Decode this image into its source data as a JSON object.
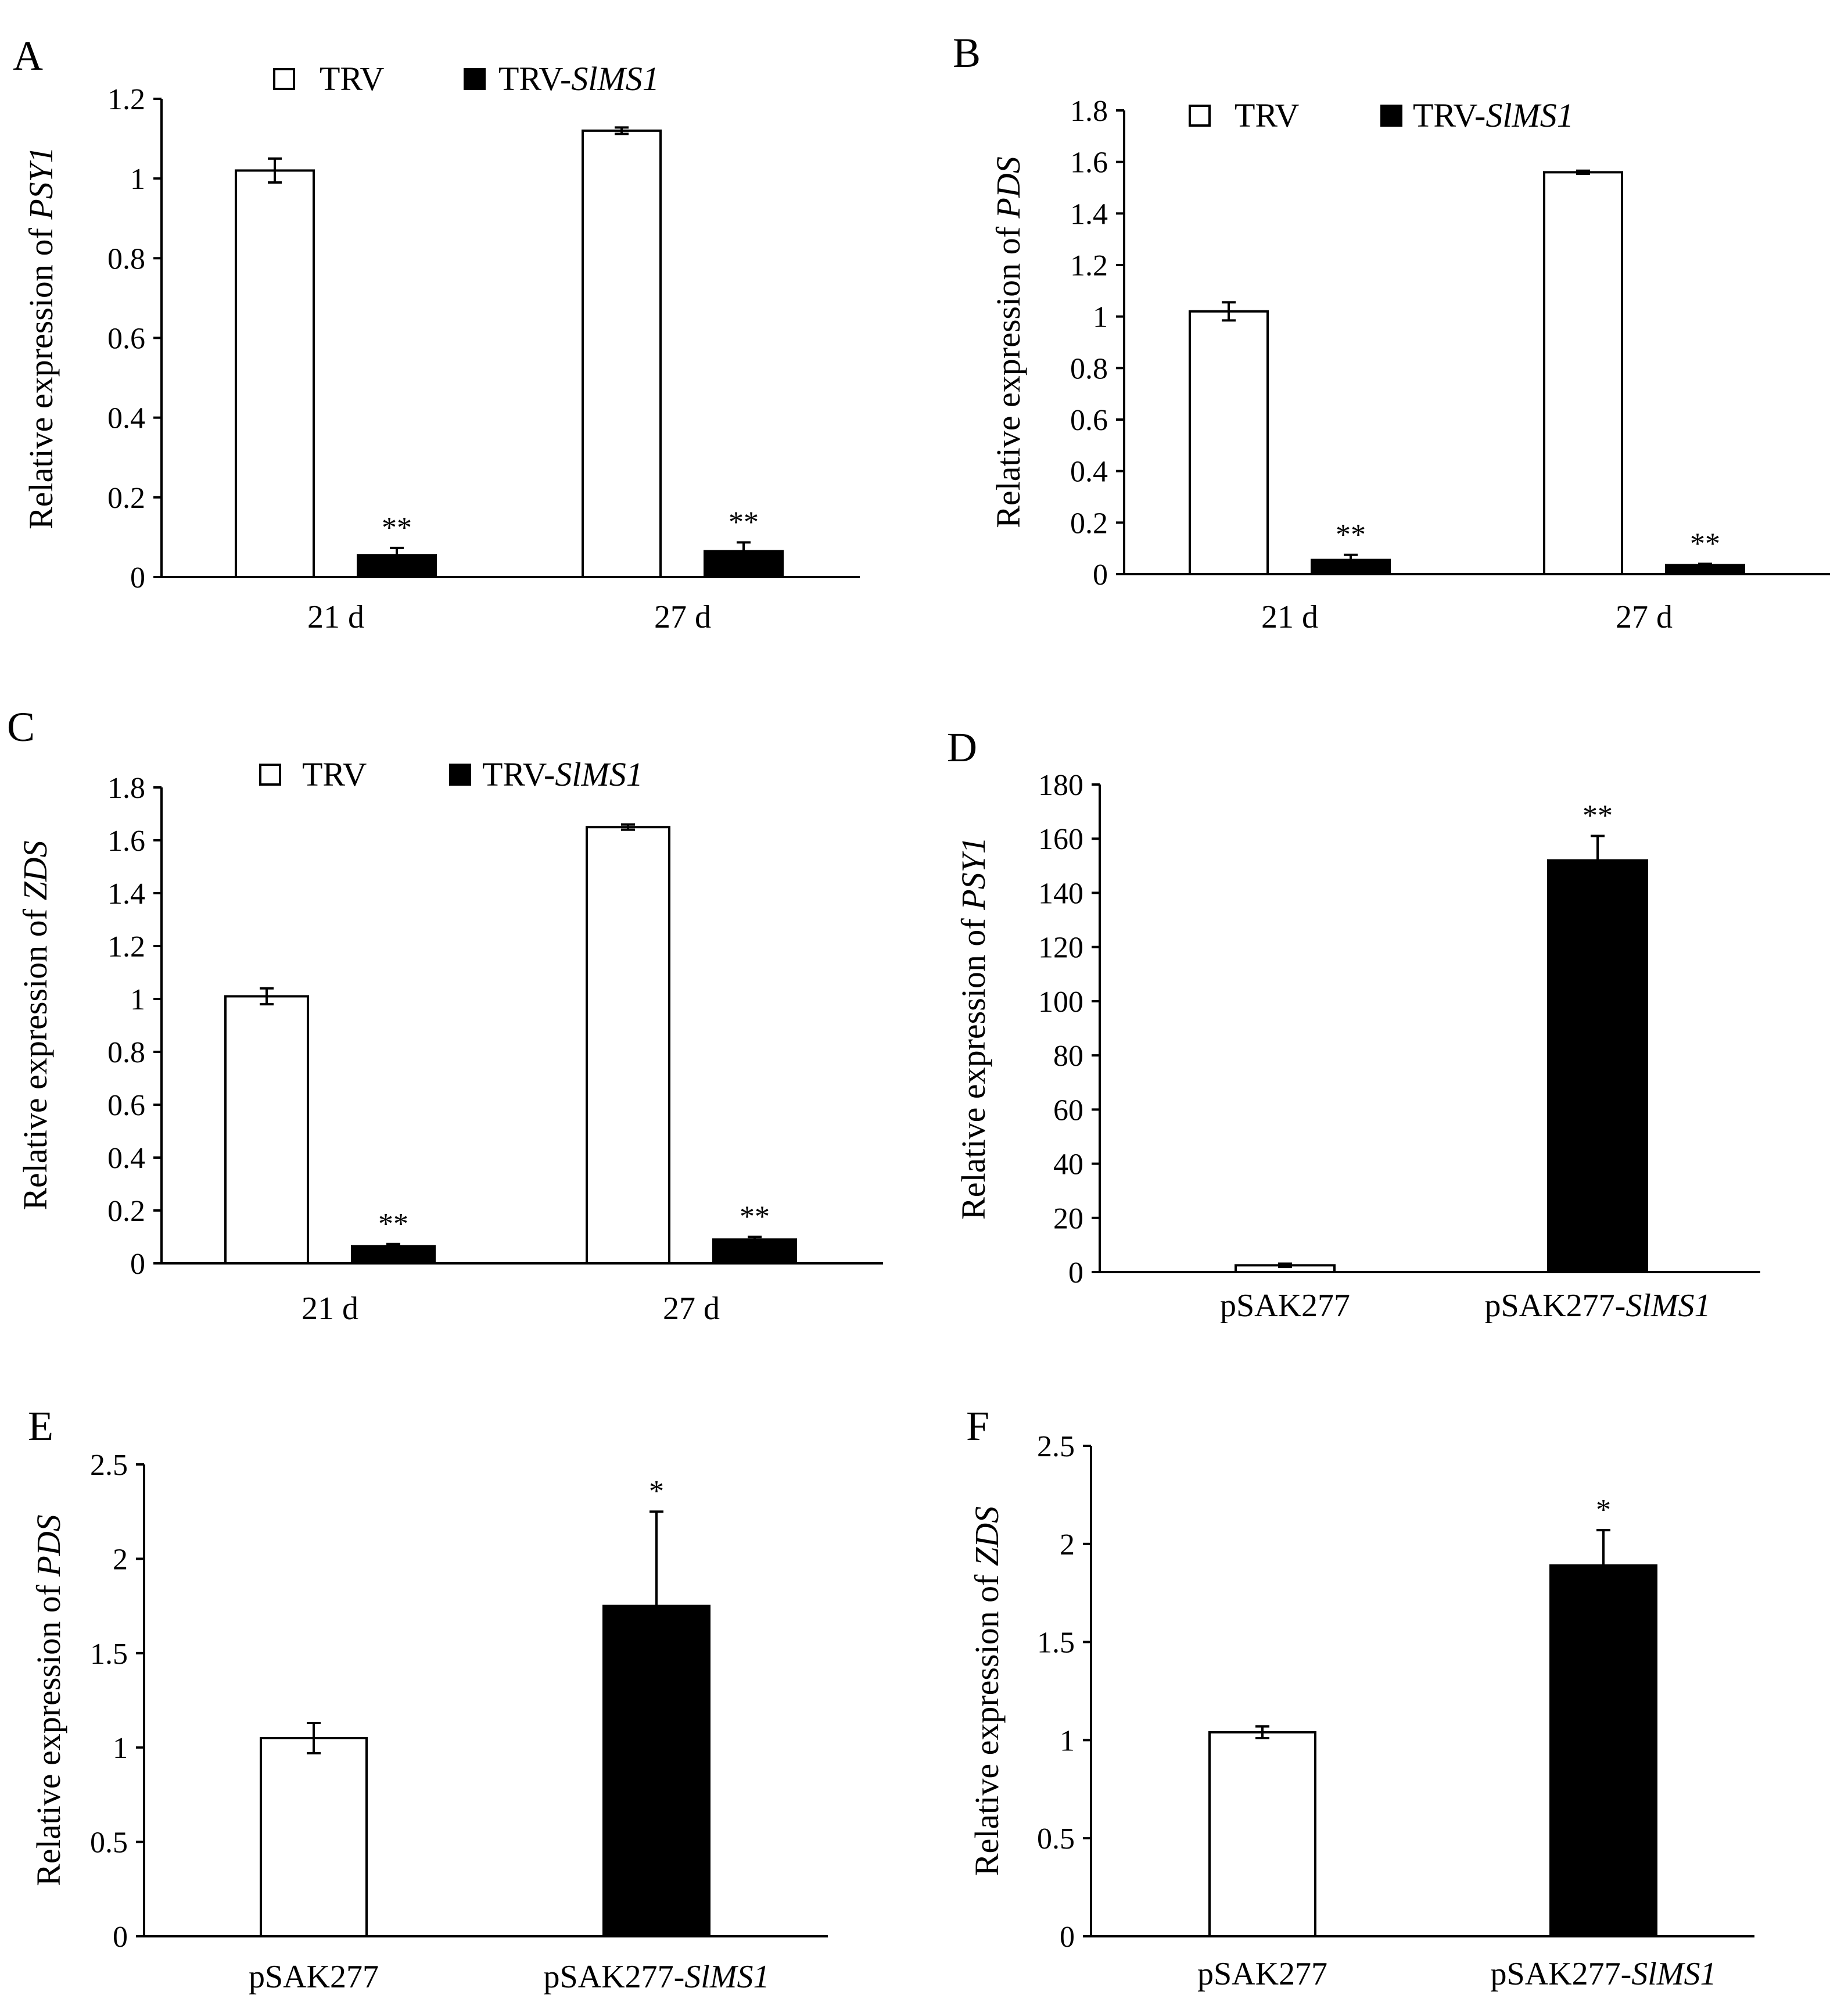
{
  "chart_data": [
    {
      "panel": "A",
      "type": "bar",
      "ylabel_prefix": "Relative expression of ",
      "ylabel_gene": "PSY1",
      "ylim": [
        0,
        1.2
      ],
      "yticks": [
        0,
        0.2,
        0.4,
        0.6,
        0.8,
        1,
        1.2
      ],
      "ytick_labels": [
        "0",
        "0.2",
        "0.4",
        "0.6",
        "0.8",
        "1",
        "1.2"
      ],
      "categories": [
        {
          "prefix": "21 d",
          "ital": ""
        },
        {
          "prefix": "27 d",
          "ital": ""
        }
      ],
      "legend": [
        {
          "prefix": "TRV",
          "ital": "",
          "color": "#ffffff"
        },
        {
          "prefix": "TRV-",
          "ital": "SlMS1",
          "color": "#000000"
        }
      ],
      "series": [
        {
          "name": "TRV",
          "color": "#ffffff",
          "values": [
            1.02,
            1.12
          ],
          "errors": [
            0.03,
            0.008
          ],
          "sig": [
            "",
            ""
          ]
        },
        {
          "name": "TRV-SlMS1",
          "color": "#000000",
          "values": [
            0.055,
            0.065
          ],
          "errors": [
            0.018,
            0.022
          ],
          "sig": [
            "**",
            "**"
          ]
        }
      ]
    },
    {
      "panel": "B",
      "type": "bar",
      "ylabel_prefix": "Relative expression of ",
      "ylabel_gene": "PDS",
      "ylim": [
        0,
        1.8
      ],
      "yticks": [
        0,
        0.2,
        0.4,
        0.6,
        0.8,
        1,
        1.2,
        1.4,
        1.6,
        1.8
      ],
      "ytick_labels": [
        "0",
        "0.2",
        "0.4",
        "0.6",
        "0.8",
        "1",
        "1.2",
        "1.4",
        "1.6",
        "1.8"
      ],
      "categories": [
        {
          "prefix": "21 d",
          "ital": ""
        },
        {
          "prefix": "27 d",
          "ital": ""
        }
      ],
      "legend": [
        {
          "prefix": "TRV",
          "ital": "",
          "color": "#ffffff"
        },
        {
          "prefix": "TRV-",
          "ital": "SlMS1",
          "color": "#000000"
        }
      ],
      "series": [
        {
          "name": "TRV",
          "color": "#ffffff",
          "values": [
            1.02,
            1.56
          ],
          "errors": [
            0.035,
            0.006
          ],
          "sig": [
            "",
            ""
          ]
        },
        {
          "name": "TRV-SlMS1",
          "color": "#000000",
          "values": [
            0.055,
            0.035
          ],
          "errors": [
            0.02,
            0.005
          ],
          "sig": [
            "**",
            "**"
          ]
        }
      ]
    },
    {
      "panel": "C",
      "type": "bar",
      "ylabel_prefix": "Relative expression of ",
      "ylabel_gene": "ZDS",
      "ylim": [
        0,
        1.8
      ],
      "yticks": [
        0,
        0.2,
        0.4,
        0.6,
        0.8,
        1,
        1.2,
        1.4,
        1.6,
        1.8
      ],
      "ytick_labels": [
        "0",
        "0.2",
        "0.4",
        "0.6",
        "0.8",
        "1",
        "1.2",
        "1.4",
        "1.6",
        "1.8"
      ],
      "categories": [
        {
          "prefix": "21 d",
          "ital": ""
        },
        {
          "prefix": "27 d",
          "ital": ""
        }
      ],
      "legend": [
        {
          "prefix": "TRV",
          "ital": "",
          "color": "#ffffff"
        },
        {
          "prefix": "TRV-",
          "ital": "SlMS1",
          "color": "#000000"
        }
      ],
      "series": [
        {
          "name": "TRV",
          "color": "#ffffff",
          "values": [
            1.01,
            1.65
          ],
          "errors": [
            0.03,
            0.01
          ],
          "sig": [
            "",
            ""
          ]
        },
        {
          "name": "TRV-SlMS1",
          "color": "#000000",
          "values": [
            0.065,
            0.09
          ],
          "errors": [
            0.008,
            0.01
          ],
          "sig": [
            "**",
            "**"
          ]
        }
      ]
    },
    {
      "panel": "D",
      "type": "bar",
      "ylabel_prefix": "Relative expression of ",
      "ylabel_gene": "PSY1",
      "ylim": [
        0,
        180
      ],
      "yticks": [
        0,
        20,
        40,
        60,
        80,
        100,
        120,
        140,
        160,
        180
      ],
      "ytick_labels": [
        "0",
        "20",
        "40",
        "60",
        "80",
        "100",
        "120",
        "140",
        "160",
        "180"
      ],
      "categories": [
        {
          "prefix": "pSAK277",
          "ital": ""
        },
        {
          "prefix": "pSAK277-",
          "ital": "SlMS1"
        }
      ],
      "legend": [],
      "series": [
        {
          "name": "values",
          "colors": [
            "#ffffff",
            "#000000"
          ],
          "values": [
            2.5,
            152
          ],
          "errors": [
            0.6,
            9
          ],
          "sig": [
            "",
            "**"
          ]
        }
      ]
    },
    {
      "panel": "E",
      "type": "bar",
      "ylabel_prefix": "Relative expression of ",
      "ylabel_gene": "PDS",
      "ylim": [
        0,
        2.5
      ],
      "yticks": [
        0,
        0.5,
        1,
        1.5,
        2,
        2.5
      ],
      "ytick_labels": [
        "0",
        "0.5",
        "1",
        "1.5",
        "2",
        "2.5"
      ],
      "categories": [
        {
          "prefix": "pSAK277",
          "ital": ""
        },
        {
          "prefix": "pSAK277-",
          "ital": "SlMS1"
        }
      ],
      "legend": [],
      "series": [
        {
          "name": "values",
          "colors": [
            "#ffffff",
            "#000000"
          ],
          "values": [
            1.05,
            1.75
          ],
          "errors": [
            0.08,
            0.5
          ],
          "sig": [
            "",
            "*"
          ]
        }
      ]
    },
    {
      "panel": "F",
      "type": "bar",
      "ylabel_prefix": "Relative expression of ",
      "ylabel_gene": "ZDS",
      "ylim": [
        0,
        2.5
      ],
      "yticks": [
        0,
        0.5,
        1,
        1.5,
        2,
        2.5
      ],
      "ytick_labels": [
        "0",
        "0.5",
        "1",
        "1.5",
        "2",
        "2.5"
      ],
      "categories": [
        {
          "prefix": "pSAK277",
          "ital": ""
        },
        {
          "prefix": "pSAK277-",
          "ital": "SlMS1"
        }
      ],
      "legend": [],
      "series": [
        {
          "name": "values",
          "colors": [
            "#ffffff",
            "#000000"
          ],
          "values": [
            1.04,
            1.89
          ],
          "errors": [
            0.03,
            0.18
          ],
          "sig": [
            "",
            "*"
          ]
        }
      ]
    }
  ]
}
